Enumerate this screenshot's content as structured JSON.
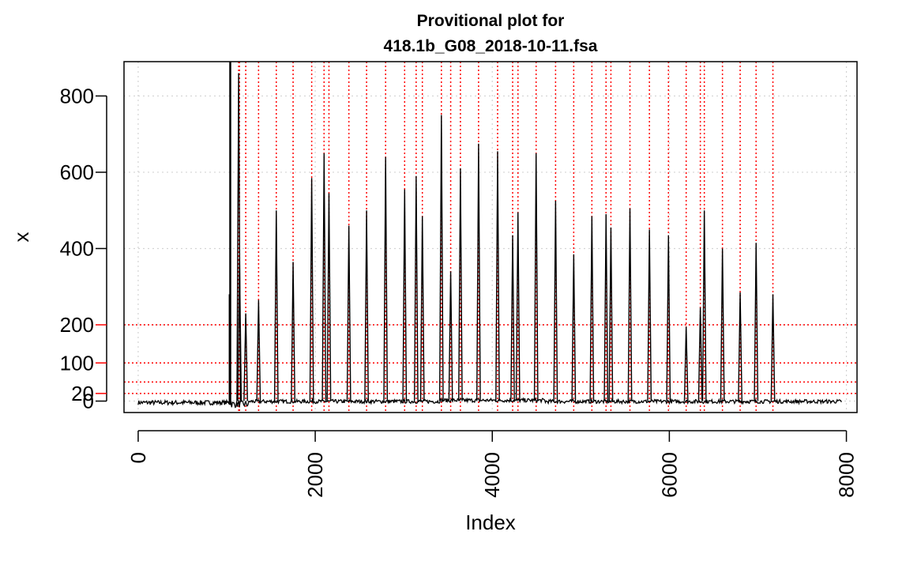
{
  "chart_data": {
    "type": "line",
    "title": "Provitional plot for\n418.1b_G08_2018-10-11.fsa",
    "title_lines": [
      "Provitional plot for",
      "418.1b_G08_2018-10-11.fsa"
    ],
    "xlabel": "Index",
    "ylabel": "x",
    "xlim": [
      -160,
      8120
    ],
    "ylim": [
      -30,
      890
    ],
    "xticks": [
      0,
      2000,
      4000,
      6000,
      8000
    ],
    "yticks": [
      0,
      20,
      100,
      200,
      400,
      600,
      800
    ],
    "grid": true,
    "baseline_start": 0,
    "baseline_end": 7950,
    "baseline_level": 0,
    "primer_start": 1050,
    "primer_peak_index": 1040,
    "primer_peak_height": 890,
    "threshold_lines": [
      {
        "y": 200,
        "color": "#ff0000"
      },
      {
        "y": 100,
        "color": "#ff0000"
      },
      {
        "y": 50,
        "color": "#ff0000"
      },
      {
        "y": 20,
        "color": "#ff0000"
      }
    ],
    "peak_marker_color": "#ff0000",
    "series_color": "#000000",
    "peaks": [
      {
        "x": 1135,
        "y": 860
      },
      {
        "x": 1145,
        "y": 375
      },
      {
        "x": 1215,
        "y": 230
      },
      {
        "x": 1360,
        "y": 265
      },
      {
        "x": 1560,
        "y": 500
      },
      {
        "x": 1750,
        "y": 365
      },
      {
        "x": 1960,
        "y": 585
      },
      {
        "x": 2100,
        "y": 650
      },
      {
        "x": 2155,
        "y": 545
      },
      {
        "x": 2380,
        "y": 460
      },
      {
        "x": 2580,
        "y": 500
      },
      {
        "x": 2795,
        "y": 640
      },
      {
        "x": 3010,
        "y": 555
      },
      {
        "x": 3140,
        "y": 590
      },
      {
        "x": 3210,
        "y": 485
      },
      {
        "x": 3425,
        "y": 750
      },
      {
        "x": 3530,
        "y": 340
      },
      {
        "x": 3640,
        "y": 610
      },
      {
        "x": 3845,
        "y": 675
      },
      {
        "x": 4060,
        "y": 655
      },
      {
        "x": 4230,
        "y": 435
      },
      {
        "x": 4290,
        "y": 495
      },
      {
        "x": 4495,
        "y": 650
      },
      {
        "x": 4715,
        "y": 525
      },
      {
        "x": 4920,
        "y": 385
      },
      {
        "x": 5125,
        "y": 485
      },
      {
        "x": 5285,
        "y": 490
      },
      {
        "x": 5340,
        "y": 455
      },
      {
        "x": 5555,
        "y": 505
      },
      {
        "x": 5775,
        "y": 450
      },
      {
        "x": 5990,
        "y": 435
      },
      {
        "x": 6190,
        "y": 195
      },
      {
        "x": 6350,
        "y": 245
      },
      {
        "x": 6395,
        "y": 500
      },
      {
        "x": 6600,
        "y": 400
      },
      {
        "x": 6800,
        "y": 285
      },
      {
        "x": 6980,
        "y": 415
      },
      {
        "x": 7170,
        "y": 280
      }
    ]
  }
}
